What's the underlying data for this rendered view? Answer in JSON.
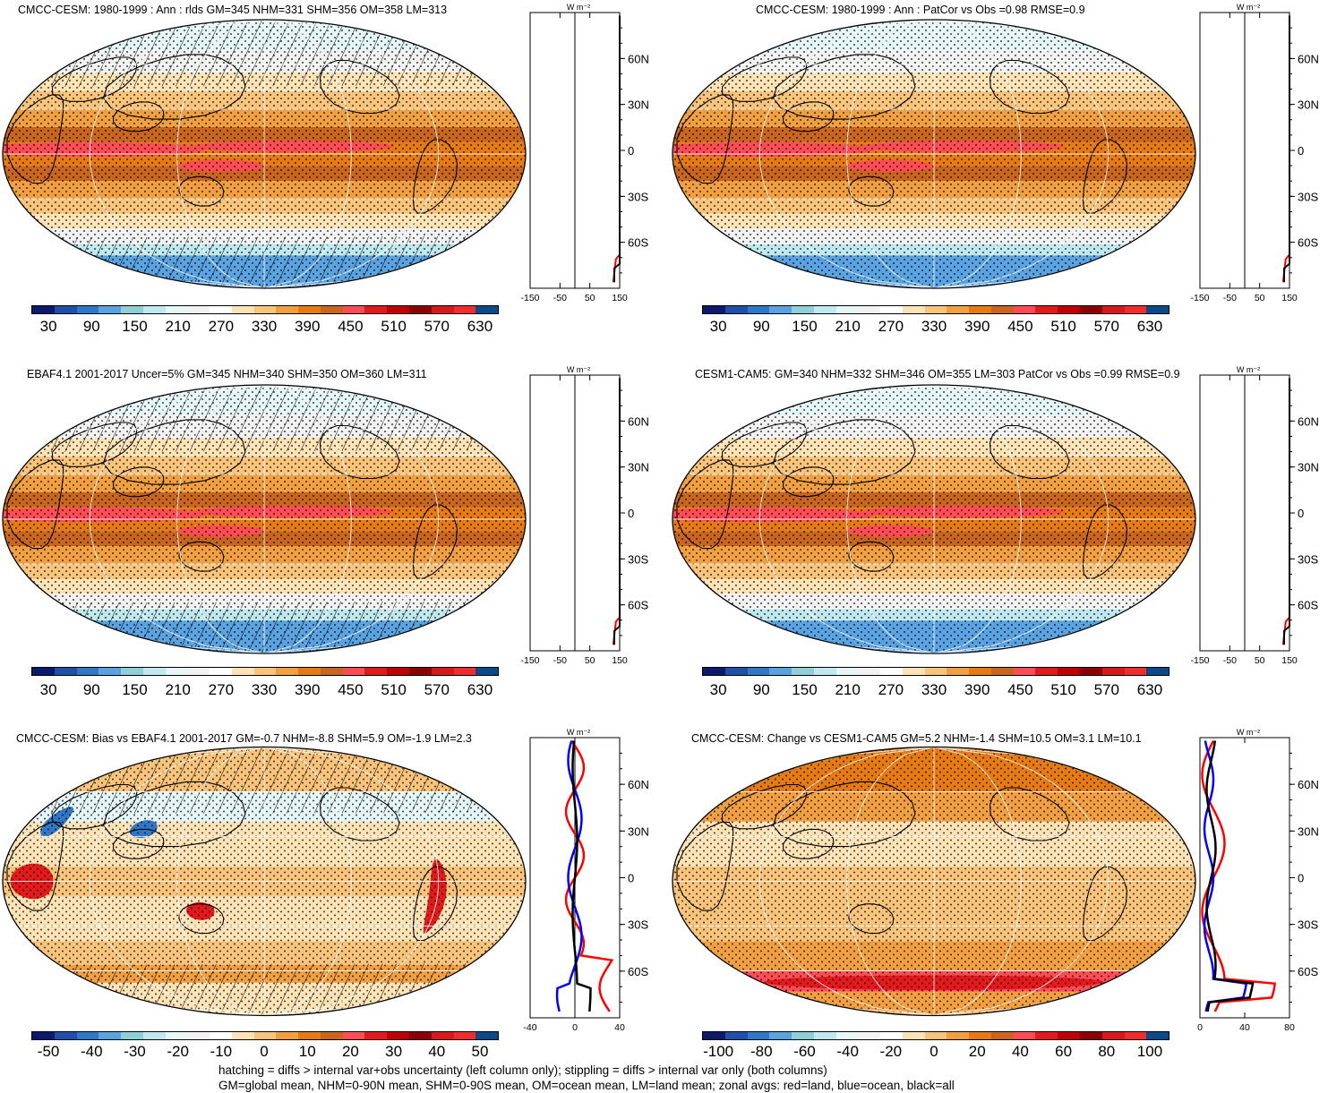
{
  "panels": [
    {
      "title": "CMCC-CESM: 1980-1999 : Ann : rlds GM=345 NHM=331 SHM=356 OM=358 LM=313",
      "cbar_labels": [
        "30",
        "90",
        "150",
        "210",
        "270",
        "330",
        "390",
        "450",
        "510",
        "570",
        "630"
      ],
      "zonal_xticks": [
        "-150",
        "-50",
        "50",
        "150"
      ],
      "hatching": true,
      "kind": "mean"
    },
    {
      "title": "CMCC-CESM: 1980-1999 : Ann : PatCor vs Obs =0.98 RMSE=0.9",
      "cbar_labels": [
        "30",
        "90",
        "150",
        "210",
        "270",
        "330",
        "390",
        "450",
        "510",
        "570",
        "630"
      ],
      "zonal_xticks": [
        "-150",
        "-50",
        "50",
        "150"
      ],
      "hatching": false,
      "kind": "mean"
    },
    {
      "title": "EBAF4.1 2001-2017 Uncer=5% GM=345 NHM=340 SHM=350 OM=360 LM=311",
      "cbar_labels": [
        "30",
        "90",
        "150",
        "210",
        "270",
        "330",
        "390",
        "450",
        "510",
        "570",
        "630"
      ],
      "zonal_xticks": [
        "-150",
        "-50",
        "50",
        "150"
      ],
      "hatching": true,
      "kind": "mean"
    },
    {
      "title": "CESM1-CAM5: GM=340 NHM=332 SHM=346 OM=355 LM=303 PatCor vs Obs =0.99 RMSE=0.9",
      "cbar_labels": [
        "30",
        "90",
        "150",
        "210",
        "270",
        "330",
        "390",
        "450",
        "510",
        "570",
        "630"
      ],
      "zonal_xticks": [
        "-150",
        "-50",
        "50",
        "150"
      ],
      "hatching": false,
      "kind": "mean"
    },
    {
      "title": "CMCC-CESM: Bias vs EBAF4.1 2001-2017 GM=-0.7 NHM=-8.8 SHM=5.9 OM=-1.9 LM=2.3",
      "cbar_labels": [
        "-50",
        "-40",
        "-30",
        "-20",
        "-10",
        "0",
        "10",
        "20",
        "30",
        "40",
        "50"
      ],
      "zonal_xticks": [
        "-40",
        "0",
        "40"
      ],
      "hatching": true,
      "kind": "bias"
    },
    {
      "title": "CMCC-CESM: Change vs CESM1-CAM5 GM=5.2 NHM=-1.4 SHM=10.5 OM=3.1 LM=10.1",
      "cbar_labels": [
        "-100",
        "-80",
        "-60",
        "-40",
        "-20",
        "0",
        "20",
        "40",
        "60",
        "80",
        "100"
      ],
      "zonal_xticks": [
        "0",
        "40",
        "80"
      ],
      "hatching": false,
      "kind": "change"
    }
  ],
  "lat_labels": [
    "60N",
    "30N",
    "0",
    "30S",
    "60S"
  ],
  "zonal_unit": "W m⁻²",
  "palette": [
    "#0d1a6b",
    "#1f4fa8",
    "#2f78c8",
    "#5aa3e0",
    "#8fd0d8",
    "#bfe9ee",
    "#e6f7f9",
    "#f2f2f2",
    "#ffffff",
    "#fde3b5",
    "#f8c37a",
    "#f0a040",
    "#e57b12",
    "#c8651f",
    "#ff4c55",
    "#e31a1c",
    "#c00000",
    "#8b0000",
    "#d7191c",
    "#ef2d2d",
    "#0b4a8a"
  ],
  "zonal_colors": {
    "land": "#ff0000",
    "ocean": "#0000ff",
    "all": "#000000"
  },
  "footnote": {
    "line1": "hatching = diffs > internal var+obs uncertainty (left column only); stippling = diffs > internal var only (both columns)",
    "line2": "GM=global mean, NHM=0-90N mean, SHM=0-90S mean, OM=ocean mean, LM=land mean; zonal avgs: red=land, blue=ocean, black=all"
  }
}
